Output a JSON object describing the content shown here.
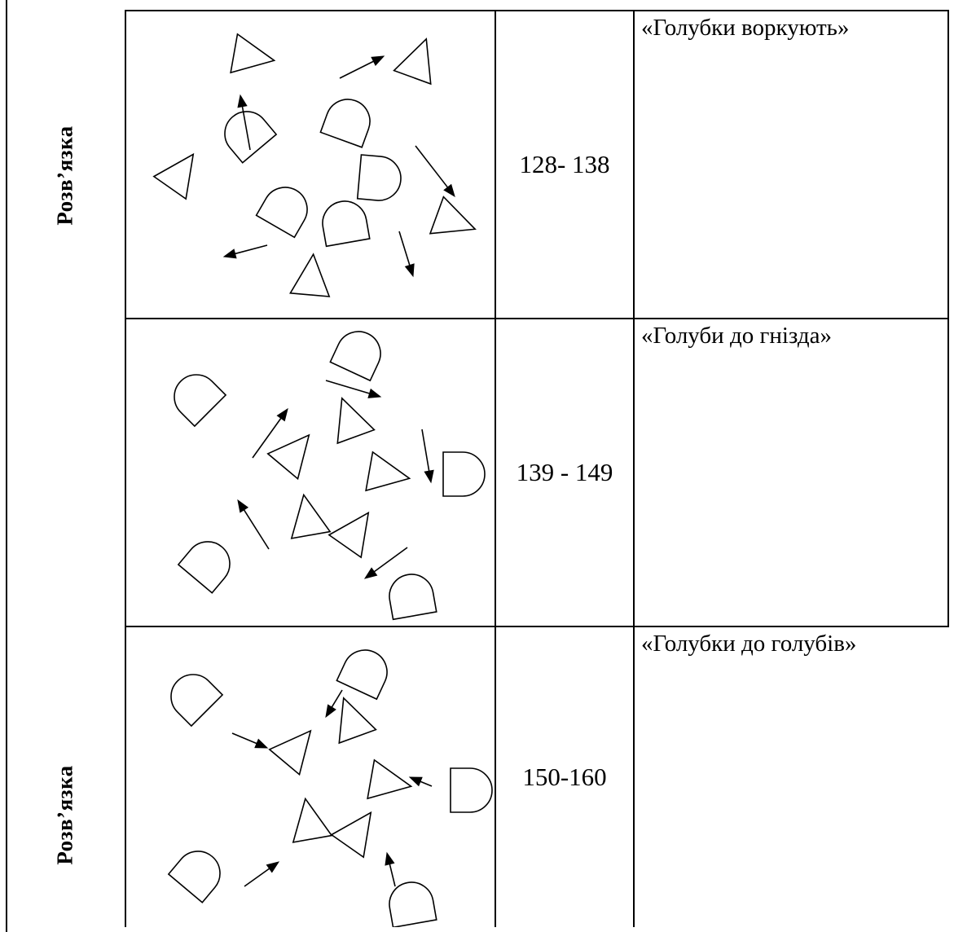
{
  "section_label": "Розв’язка",
  "rows": [
    {
      "pages": "128- 138",
      "title": "«Голубки воркують»"
    },
    {
      "pages": "139 - 149",
      "title": "«Голуби до гнізда»"
    },
    {
      "pages": "150-160",
      "title": "«Голубки до голубів»"
    }
  ],
  "icons": [
    "dove-shape-icon",
    "triangle-icon",
    "arrow-icon"
  ]
}
